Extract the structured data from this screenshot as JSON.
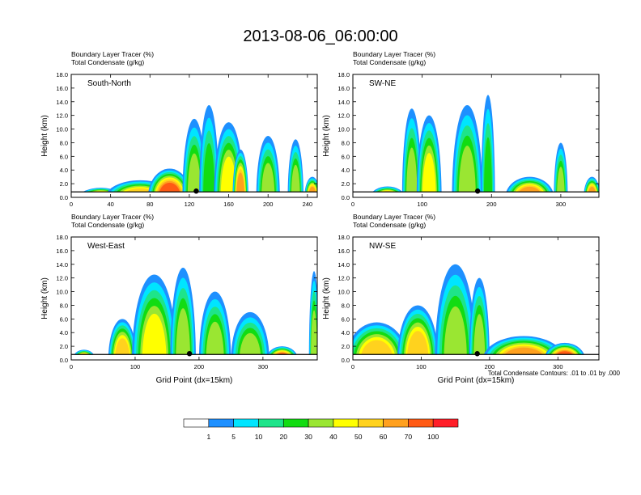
{
  "title": "2013-08-06_06:00:00",
  "panel_header_line1": "Boundary Layer Tracer   (%)",
  "panel_header_line2": "Total Condensate   (g/kg)",
  "ylabel": "Height (km)",
  "xlabel": "Grid Point (dx=15km)",
  "contour_note": "Total Condensate Contours: .01 to .01 by .000",
  "colors": [
    "#ffffff",
    "#1e90ff",
    "#00e5ff",
    "#1ee48a",
    "#12dc12",
    "#9ae632",
    "#ffff00",
    "#ffd21e",
    "#ffa01e",
    "#ff5a14",
    "#ff1e28"
  ],
  "colorbar_labels": [
    "1",
    "5",
    "10",
    "20",
    "30",
    "40",
    "50",
    "60",
    "70",
    "100"
  ],
  "chart_data": [
    {
      "type": "heatmap",
      "panel": "South-North",
      "xlabel": "",
      "ylabel": "Height (km)",
      "xlim": [
        0,
        250
      ],
      "ylim": [
        0,
        18
      ],
      "xticks": [
        "0",
        "40",
        "80",
        "120",
        "160",
        "200",
        "240"
      ],
      "yticks": [
        "0.0",
        "2.0",
        "4.0",
        "6.0",
        "8.0",
        "10.0",
        "12.0",
        "14.0",
        "16.0",
        "18.0"
      ],
      "terrain_marker_x": 127,
      "blobs": [
        {
          "x": 30,
          "w": 22,
          "y0": 0,
          "y1": 1.4,
          "v": 70
        },
        {
          "x": 70,
          "w": 35,
          "y0": 0,
          "y1": 2.5,
          "v": 50
        },
        {
          "x": 100,
          "w": 22,
          "y0": 0,
          "y1": 4.2,
          "v": 70
        },
        {
          "x": 125,
          "w": 12,
          "y0": 0,
          "y1": 11.5,
          "v": 30
        },
        {
          "x": 140,
          "w": 10,
          "y0": 0,
          "y1": 13.5,
          "v": 20
        },
        {
          "x": 160,
          "w": 15,
          "y0": 0,
          "y1": 11.0,
          "v": 40
        },
        {
          "x": 172,
          "w": 8,
          "y0": 0,
          "y1": 7.0,
          "v": 60
        },
        {
          "x": 200,
          "w": 12,
          "y0": 0,
          "y1": 9.0,
          "v": 30
        },
        {
          "x": 228,
          "w": 8,
          "y0": 0,
          "y1": 8.5,
          "v": 30
        },
        {
          "x": 245,
          "w": 8,
          "y0": 0,
          "y1": 3.0,
          "v": 60
        }
      ]
    },
    {
      "type": "heatmap",
      "panel": "SW-NE",
      "xlabel": "",
      "ylabel": "Height (km)",
      "xlim": [
        0,
        355
      ],
      "ylim": [
        0,
        18
      ],
      "xticks": [
        "0",
        "100",
        "200",
        "300"
      ],
      "yticks": [
        "0.0",
        "2.0",
        "4.0",
        "6.0",
        "8.0",
        "10.0",
        "12.0",
        "14.0",
        "16.0",
        "18.0"
      ],
      "terrain_marker_x": 180,
      "blobs": [
        {
          "x": 50,
          "w": 25,
          "y0": 0,
          "y1": 1.6,
          "v": 60
        },
        {
          "x": 85,
          "w": 14,
          "y0": 0,
          "y1": 13.0,
          "v": 30
        },
        {
          "x": 110,
          "w": 18,
          "y0": 0,
          "y1": 12.0,
          "v": 40
        },
        {
          "x": 165,
          "w": 22,
          "y0": 0,
          "y1": 13.5,
          "v": 30
        },
        {
          "x": 195,
          "w": 10,
          "y0": 0,
          "y1": 15.0,
          "v": 20
        },
        {
          "x": 255,
          "w": 35,
          "y0": 0,
          "y1": 3.0,
          "v": 60
        },
        {
          "x": 300,
          "w": 10,
          "y0": 0,
          "y1": 8.0,
          "v": 30
        },
        {
          "x": 345,
          "w": 12,
          "y0": 0,
          "y1": 3.0,
          "v": 60
        }
      ]
    },
    {
      "type": "heatmap",
      "panel": "West-East",
      "xlabel": "Grid Point (dx=15km)",
      "ylabel": "Height (km)",
      "xlim": [
        0,
        385
      ],
      "ylim": [
        0,
        18
      ],
      "xticks": [
        "0",
        "100",
        "200",
        "300"
      ],
      "yticks": [
        "0.0",
        "2.0",
        "4.0",
        "6.0",
        "8.0",
        "10.0",
        "12.0",
        "14.0",
        "16.0",
        "18.0"
      ],
      "terrain_marker_x": 185,
      "blobs": [
        {
          "x": 20,
          "w": 18,
          "y0": 0,
          "y1": 1.5,
          "v": 70
        },
        {
          "x": 80,
          "w": 22,
          "y0": 0,
          "y1": 6.0,
          "v": 50
        },
        {
          "x": 130,
          "w": 35,
          "y0": 0,
          "y1": 12.5,
          "v": 40
        },
        {
          "x": 175,
          "w": 20,
          "y0": 0,
          "y1": 13.5,
          "v": 30
        },
        {
          "x": 225,
          "w": 25,
          "y0": 0,
          "y1": 10.0,
          "v": 30
        },
        {
          "x": 280,
          "w": 30,
          "y0": 0,
          "y1": 7.0,
          "v": 30
        },
        {
          "x": 330,
          "w": 25,
          "y0": 0,
          "y1": 2.0,
          "v": 70
        },
        {
          "x": 380,
          "w": 8,
          "y0": 0,
          "y1": 13.0,
          "v": 30
        }
      ]
    },
    {
      "type": "heatmap",
      "panel": "NW-SE",
      "xlabel": "Grid Point (dx=15km)",
      "ylabel": "Height (km)",
      "xlim": [
        0,
        360
      ],
      "ylim": [
        0,
        18
      ],
      "xticks": [
        "0",
        "100",
        "200",
        "300"
      ],
      "yticks": [
        "0.0",
        "2.0",
        "4.0",
        "6.0",
        "8.0",
        "10.0",
        "12.0",
        "14.0",
        "16.0",
        "18.0"
      ],
      "terrain_marker_x": 182,
      "blobs": [
        {
          "x": 35,
          "w": 45,
          "y0": 0,
          "y1": 5.5,
          "v": 50
        },
        {
          "x": 95,
          "w": 30,
          "y0": 0,
          "y1": 8.0,
          "v": 50
        },
        {
          "x": 150,
          "w": 30,
          "y0": 0,
          "y1": 14.0,
          "v": 30
        },
        {
          "x": 185,
          "w": 15,
          "y0": 0,
          "y1": 12.0,
          "v": 30
        },
        {
          "x": 250,
          "w": 60,
          "y0": 0,
          "y1": 3.5,
          "v": 60
        },
        {
          "x": 310,
          "w": 30,
          "y0": 0,
          "y1": 2.5,
          "v": 70
        }
      ]
    }
  ]
}
